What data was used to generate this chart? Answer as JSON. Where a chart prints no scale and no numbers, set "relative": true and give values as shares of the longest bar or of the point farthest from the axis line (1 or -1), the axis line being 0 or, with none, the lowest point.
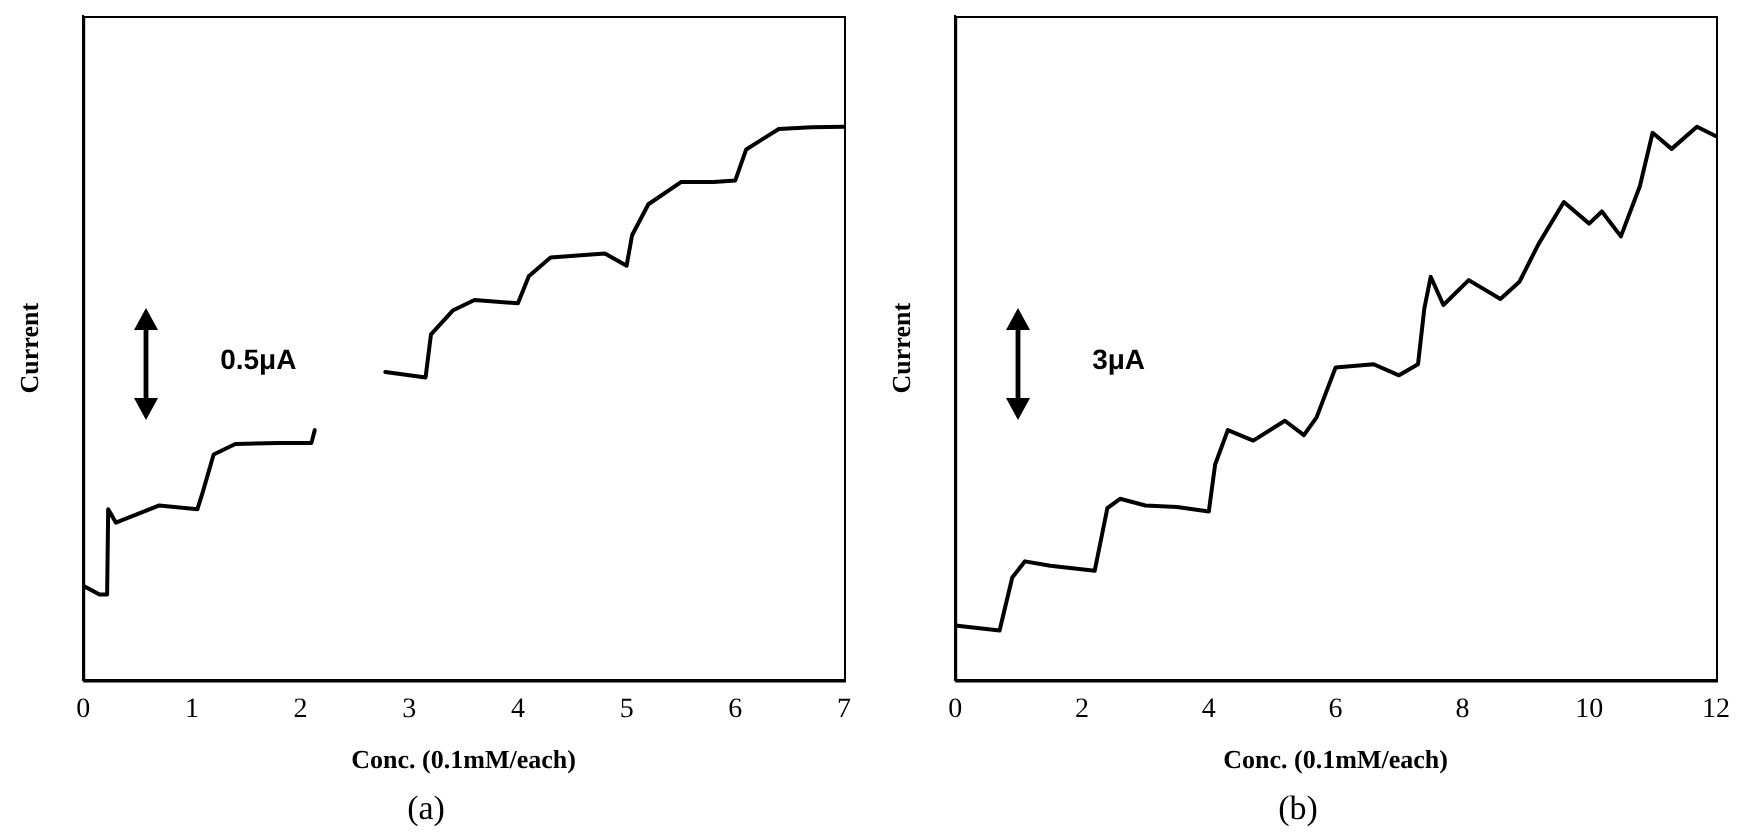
{
  "chart_data": [
    {
      "type": "line",
      "title": "(a)",
      "xlabel": "Conc. (0.1mM/each)",
      "ylabel": "Current",
      "relative": true,
      "xlim": [
        0,
        7
      ],
      "xticks": [
        0,
        1,
        2,
        3,
        4,
        5,
        6,
        7
      ],
      "grid": false,
      "legend": false,
      "marker": "none",
      "line_style": "solid",
      "annotations": [
        "0.5μA"
      ],
      "series": [
        {
          "color": "#000000",
          "x": [
            0,
            0.15,
            0.22,
            0.23,
            0.3,
            0.7,
            1.05,
            1.1,
            1.2,
            1.4,
            1.8,
            2.1,
            2.13,
            2.5,
            2.78,
            3.0,
            3.15,
            3.2,
            3.4,
            3.6,
            4.0,
            4.1,
            4.3,
            4.8,
            5.0,
            5.05,
            5.2,
            5.5,
            5.8,
            6.0,
            6.1,
            6.4,
            6.7,
            7.0
          ],
          "values": [
            0.171,
            0.155,
            0.155,
            0.309,
            0.285,
            0.316,
            0.309,
            0.34,
            0.408,
            0.427,
            0.429,
            0.429,
            0.452,
            null,
            0.557,
            0.551,
            0.547,
            0.625,
            0.668,
            0.687,
            0.681,
            0.73,
            0.764,
            0.771,
            0.749,
            0.804,
            0.86,
            0.9,
            0.9,
            0.903,
            0.959,
            0.996,
            0.999,
            1.0
          ]
        }
      ]
    },
    {
      "type": "line",
      "title": "(b)",
      "xlabel": "Conc. (0.1mM/each)",
      "ylabel": "Current",
      "relative": true,
      "xlim": [
        0,
        12
      ],
      "xticks": [
        0,
        2,
        4,
        6,
        8,
        10,
        12
      ],
      "grid": false,
      "legend": false,
      "marker": "none",
      "line_style": "solid",
      "annotations": [
        "3μA"
      ],
      "series": [
        {
          "color": "#000000",
          "x": [
            0,
            0.7,
            0.9,
            1.1,
            1.5,
            2.2,
            2.4,
            2.6,
            3.0,
            3.5,
            4.0,
            4.1,
            4.3,
            4.7,
            5.2,
            5.5,
            5.7,
            6.0,
            6.6,
            7.0,
            7.3,
            7.4,
            7.5,
            7.7,
            8.1,
            8.6,
            8.9,
            9.2,
            9.6,
            10.0,
            10.2,
            10.5,
            10.8,
            11.0,
            11.3,
            11.7,
            12.0
          ],
          "values": [
            0.099,
            0.09,
            0.186,
            0.215,
            0.207,
            0.198,
            0.311,
            0.328,
            0.316,
            0.313,
            0.305,
            0.39,
            0.452,
            0.433,
            0.469,
            0.443,
            0.475,
            0.565,
            0.571,
            0.551,
            0.571,
            0.672,
            0.729,
            0.678,
            0.723,
            0.689,
            0.72,
            0.788,
            0.864,
            0.825,
            0.847,
            0.802,
            0.893,
            0.989,
            0.96,
            1.0,
            0.983
          ]
        }
      ]
    }
  ]
}
